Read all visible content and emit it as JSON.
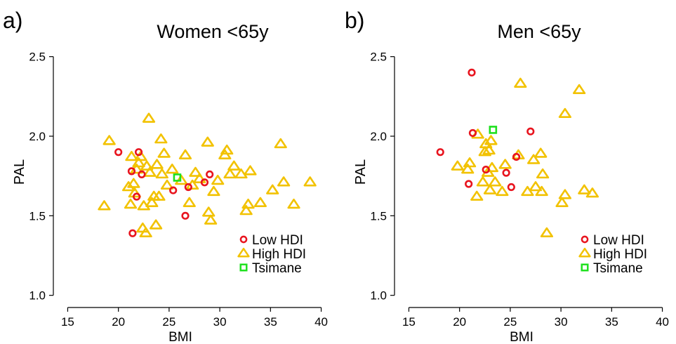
{
  "chart_data": [
    {
      "type": "scatter",
      "panel_label": "a)",
      "title": "Women <65y",
      "xlabel": "BMI",
      "ylabel": "PAL",
      "xlim": [
        14,
        41
      ],
      "ylim": [
        0.95,
        2.6
      ],
      "xticks": [
        15,
        20,
        25,
        30,
        35,
        40
      ],
      "yticks": [
        1.0,
        1.5,
        2.0,
        2.5
      ],
      "ytick_labels": [
        "1.0",
        "1.5",
        "2.0",
        "2.5"
      ],
      "legend": {
        "position": "bottom-right",
        "entries": [
          "Low HDI",
          "High HDI",
          "Tsimane"
        ]
      },
      "series": [
        {
          "name": "Low HDI",
          "marker": "circle",
          "color": "#e8141e",
          "x": [
            20.0,
            21.3,
            21.4,
            21.8,
            22.0,
            22.3,
            25.4,
            26.6,
            26.9,
            28.5,
            29.0
          ],
          "y": [
            1.9,
            1.78,
            1.39,
            1.62,
            1.9,
            1.76,
            1.66,
            1.5,
            1.68,
            1.71,
            1.76
          ]
        },
        {
          "name": "High HDI",
          "marker": "triangle",
          "color": "#f2c200",
          "x": [
            18.6,
            19.1,
            21.0,
            21.2,
            21.3,
            21.5,
            21.6,
            21.8,
            22.0,
            22.2,
            22.4,
            22.5,
            22.7,
            22.8,
            23.0,
            23.1,
            23.3,
            23.5,
            23.7,
            23.8,
            24.0,
            24.2,
            24.3,
            24.5,
            24.8,
            25.3,
            26.2,
            26.6,
            27.0,
            27.3,
            27.6,
            28.0,
            28.8,
            28.9,
            29.1,
            29.4,
            29.8,
            30.5,
            30.7,
            31.0,
            31.4,
            32.1,
            32.6,
            32.8,
            33.0,
            34.0,
            35.2,
            36.0,
            36.3,
            37.3,
            38.9
          ],
          "y": [
            1.56,
            1.97,
            1.68,
            1.57,
            1.87,
            1.7,
            1.64,
            1.79,
            1.83,
            1.87,
            1.42,
            1.56,
            1.39,
            1.81,
            2.11,
            1.77,
            1.58,
            1.62,
            1.44,
            1.82,
            1.62,
            1.98,
            1.76,
            1.89,
            1.69,
            1.79,
            1.72,
            1.88,
            1.58,
            1.69,
            1.77,
            1.73,
            1.96,
            1.52,
            1.47,
            1.65,
            1.72,
            1.88,
            1.91,
            1.76,
            1.81,
            1.76,
            1.53,
            1.57,
            1.78,
            1.58,
            1.66,
            1.95,
            1.71,
            1.57,
            1.71
          ]
        },
        {
          "name": "Tsimane",
          "marker": "square",
          "color": "#1ee01e",
          "x": [
            25.8
          ],
          "y": [
            1.74
          ]
        }
      ]
    },
    {
      "type": "scatter",
      "panel_label": "b)",
      "title": "Men <65y",
      "xlabel": "BMI",
      "ylabel": "PAL",
      "xlim": [
        14,
        41
      ],
      "ylim": [
        0.95,
        2.6
      ],
      "xticks": [
        15,
        20,
        25,
        30,
        35,
        40
      ],
      "yticks": [
        1.0,
        1.5,
        2.0,
        2.5
      ],
      "ytick_labels": [
        "1.0",
        "1.5",
        "2.0",
        "2.5"
      ],
      "legend": {
        "position": "bottom-right",
        "entries": [
          "Low HDI",
          "High HDI",
          "Tsimane"
        ]
      },
      "series": [
        {
          "name": "Low HDI",
          "marker": "circle",
          "color": "#e8141e",
          "x": [
            18.1,
            20.9,
            21.2,
            21.3,
            22.6,
            24.6,
            25.1,
            25.6,
            27.0
          ],
          "y": [
            1.9,
            1.7,
            2.4,
            2.02,
            1.79,
            1.77,
            1.68,
            1.87,
            2.03
          ]
        },
        {
          "name": "High HDI",
          "marker": "triangle",
          "color": "#f2c200",
          "x": [
            19.8,
            20.8,
            21.0,
            21.7,
            21.8,
            22.3,
            22.5,
            22.6,
            22.8,
            22.9,
            23.0,
            23.1,
            23.2,
            23.5,
            24.2,
            24.5,
            25.8,
            26.0,
            26.7,
            27.3,
            27.5,
            28.0,
            28.1,
            28.2,
            28.6,
            30.1,
            30.4,
            30.4,
            31.8,
            32.3,
            33.1
          ],
          "y": [
            1.81,
            1.79,
            1.83,
            1.62,
            2.01,
            1.71,
            1.9,
            1.95,
            1.77,
            1.91,
            1.66,
            1.97,
            1.8,
            1.71,
            1.65,
            1.82,
            1.88,
            2.33,
            1.65,
            1.85,
            1.68,
            1.89,
            1.65,
            1.76,
            1.39,
            1.58,
            1.63,
            2.14,
            2.29,
            1.66,
            1.64
          ]
        },
        {
          "name": "Tsimane",
          "marker": "square",
          "color": "#1ee01e",
          "x": [
            23.3
          ],
          "y": [
            2.04
          ]
        }
      ]
    }
  ]
}
